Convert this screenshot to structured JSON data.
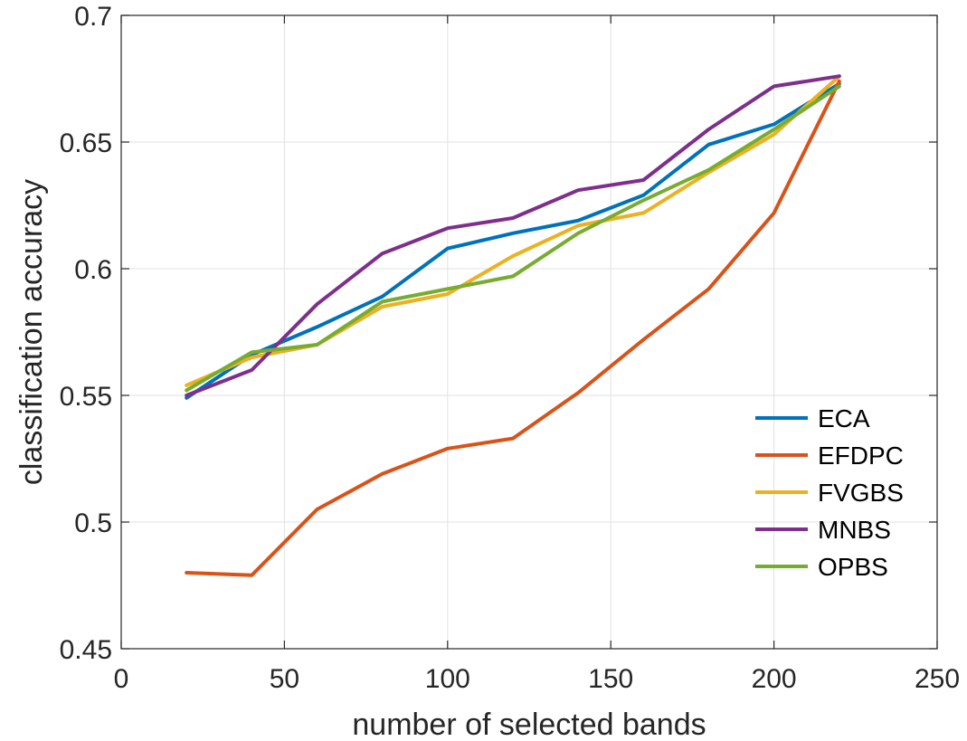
{
  "chart_data": {
    "type": "line",
    "title": "",
    "xlabel": "number of selected bands",
    "ylabel": "classification accuracy",
    "xlim": [
      0,
      250
    ],
    "ylim": [
      0.45,
      0.7
    ],
    "xticks": [
      0,
      50,
      100,
      150,
      200,
      250
    ],
    "yticks": [
      0.45,
      0.5,
      0.55,
      0.6,
      0.65,
      0.7
    ],
    "xtick_labels": [
      "0",
      "50",
      "100",
      "150",
      "200",
      "250"
    ],
    "ytick_labels": [
      "0.45",
      "0.5",
      "0.55",
      "0.6",
      "0.65",
      "0.7"
    ],
    "grid": true,
    "legend_position": "bottom-right",
    "x": [
      20,
      40,
      60,
      80,
      100,
      120,
      140,
      160,
      180,
      200,
      220
    ],
    "series": [
      {
        "name": "ECA",
        "color": "#0072BD",
        "values": [
          0.549,
          0.566,
          0.577,
          0.589,
          0.608,
          0.614,
          0.619,
          0.629,
          0.649,
          0.657,
          0.673
        ]
      },
      {
        "name": "EFDPC",
        "color": "#D95319",
        "values": [
          0.48,
          0.479,
          0.505,
          0.519,
          0.529,
          0.533,
          0.551,
          0.572,
          0.592,
          0.622,
          0.674
        ]
      },
      {
        "name": "FVGBS",
        "color": "#EDB120",
        "values": [
          0.554,
          0.565,
          0.57,
          0.585,
          0.59,
          0.605,
          0.617,
          0.622,
          0.638,
          0.653,
          0.676
        ]
      },
      {
        "name": "MNBS",
        "color": "#7E2F8E",
        "values": [
          0.55,
          0.56,
          0.586,
          0.606,
          0.616,
          0.62,
          0.631,
          0.635,
          0.655,
          0.672,
          0.676
        ]
      },
      {
        "name": "OPBS",
        "color": "#77AC30",
        "values": [
          0.552,
          0.567,
          0.57,
          0.587,
          0.592,
          0.597,
          0.614,
          0.627,
          0.639,
          0.655,
          0.672
        ]
      }
    ]
  }
}
